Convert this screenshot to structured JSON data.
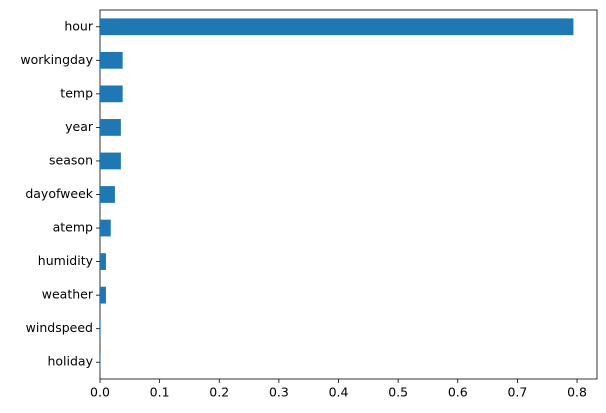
{
  "chart_data": {
    "type": "barh",
    "categories": [
      "hour",
      "workingday",
      "temp",
      "year",
      "season",
      "dayofweek",
      "atemp",
      "humidity",
      "weather",
      "windspeed",
      "holiday"
    ],
    "values": [
      0.794,
      0.038,
      0.038,
      0.035,
      0.035,
      0.025,
      0.018,
      0.01,
      0.01,
      0.001,
      0.0005
    ],
    "color": "#1f77b4",
    "xlim": [
      0,
      0.8335
    ],
    "xticks": [
      {
        "value": 0,
        "label": "0.0"
      },
      0.1,
      0.2,
      0.3,
      0.4,
      0.5,
      0.6,
      0.7,
      0.8
    ],
    "grid": false
  }
}
